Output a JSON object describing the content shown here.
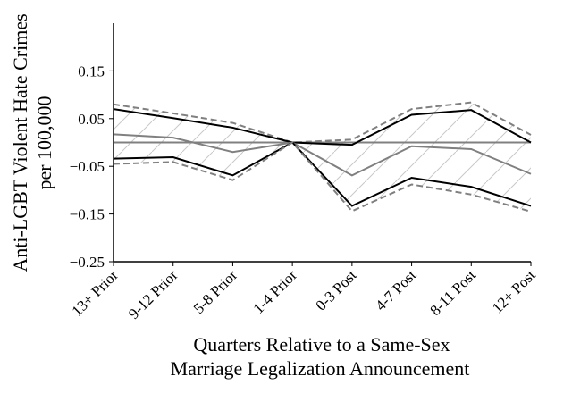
{
  "chart_data": {
    "type": "line",
    "title": "",
    "xlabel": [
      "Quarters Relative to a Same-Sex",
      "Marriage Legalization Announcement"
    ],
    "ylabel": [
      "Anti-LGBT Violent Hate Crimes",
      "per 100,000"
    ],
    "categories": [
      "13+ Prior",
      "9-12 Prior",
      "5-8 Prior",
      "1-4 Prior",
      "0-3 Post",
      "4-7 Post",
      "8-11 Post",
      "12+ Post"
    ],
    "ylim": [
      -0.25,
      0.25
    ],
    "yticks": [
      0.15,
      0.05,
      -0.05,
      -0.15,
      -0.25
    ],
    "ytick_labels": [
      "0.15",
      "0.05",
      "−0.05",
      "−0.15",
      "−0.25"
    ],
    "grid": false,
    "reference_line": 0,
    "series": [
      {
        "name": "upper-outer-bound",
        "style": "dashed",
        "color": "#808080",
        "values": [
          0.08,
          0.061,
          0.041,
          0.0,
          0.006,
          0.07,
          0.084,
          0.016
        ]
      },
      {
        "name": "upper-inner-bound",
        "style": "solid",
        "color": "#000000",
        "values": [
          0.07,
          0.051,
          0.031,
          0.0,
          -0.005,
          0.058,
          0.068,
          0.0
        ]
      },
      {
        "name": "point-estimate",
        "style": "solid",
        "color": "#808080",
        "values": [
          0.017,
          0.01,
          -0.02,
          0.0,
          -0.069,
          -0.008,
          -0.014,
          -0.066
        ]
      },
      {
        "name": "lower-inner-bound",
        "style": "solid",
        "color": "#000000",
        "values": [
          -0.034,
          -0.031,
          -0.069,
          0.0,
          -0.133,
          -0.074,
          -0.093,
          -0.133
        ]
      },
      {
        "name": "lower-outer-bound",
        "style": "dashed",
        "color": "#808080",
        "values": [
          -0.045,
          -0.041,
          -0.079,
          0.0,
          -0.144,
          -0.088,
          -0.109,
          -0.145
        ]
      }
    ],
    "shaded_band": {
      "between": [
        "upper-outer-bound",
        "lower-outer-bound"
      ],
      "pattern": "hatch",
      "color": "#c8c8c8"
    }
  }
}
